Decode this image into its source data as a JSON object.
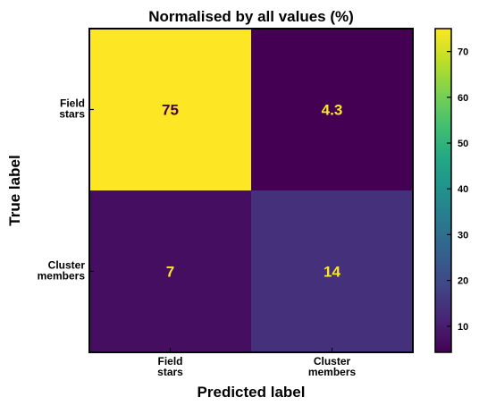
{
  "chart_data": {
    "type": "heatmap",
    "title": "Normalised by all values (%)",
    "xlabel": "Predicted label",
    "ylabel": "True label",
    "x_tick_labels": [
      [
        "Field",
        "stars"
      ],
      [
        "Cluster",
        "members"
      ]
    ],
    "y_tick_labels": [
      [
        "Field",
        "stars"
      ],
      [
        "Cluster",
        "members"
      ]
    ],
    "matrix": [
      [
        75,
        4.3
      ],
      [
        7,
        14
      ]
    ],
    "cell_text": [
      [
        "75",
        "4.3"
      ],
      [
        "7",
        "14"
      ]
    ],
    "colormap": "viridis",
    "value_range": [
      4.3,
      75
    ],
    "colorbar_ticks": [
      10,
      20,
      30,
      40,
      50,
      60,
      70
    ],
    "colorbar_tick_labels": [
      "10",
      "20",
      "30",
      "40",
      "50",
      "60",
      "70"
    ],
    "text_color_dark_cells": "#fde725",
    "text_color_light_cells": "#440154"
  }
}
